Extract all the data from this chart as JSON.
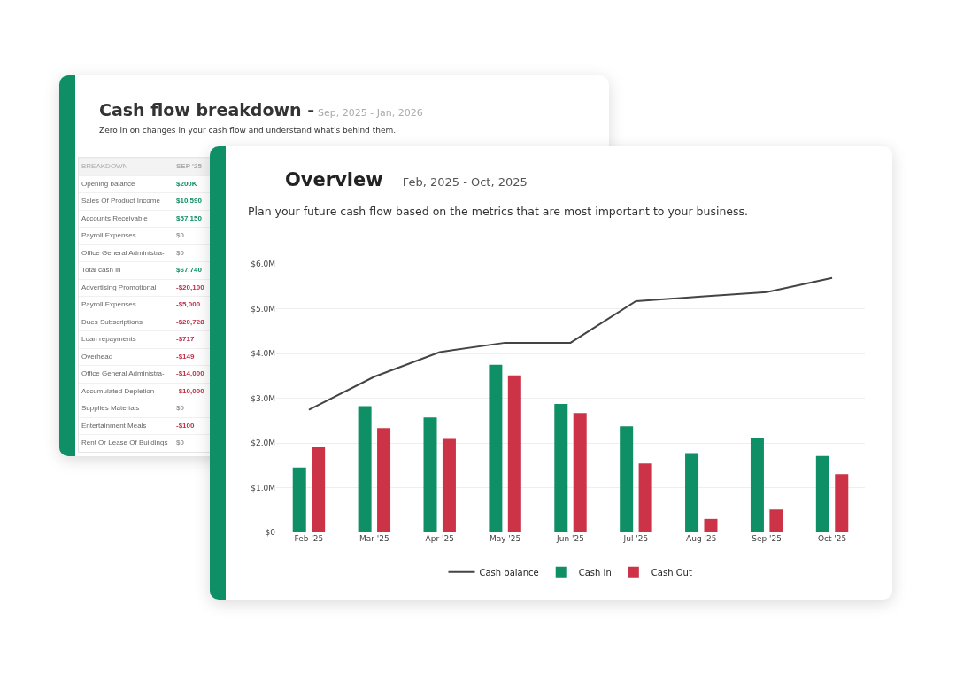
{
  "chart_data": [
    {
      "type": "other",
      "title": "Cash flow breakdown -",
      "subtitle": "Sep, 2025 - Jan, 2026",
      "annotations": [
        "Zero in on changes in your cash flow and understand what's behind them."
      ],
      "xlabel": "BREAKDOWN",
      "ylabel": "SEP '25",
      "categories": [
        "Opening balance",
        "Sales Of Product Income",
        "Accounts Receivable",
        "Payroll Expenses",
        "Office General Administra-",
        "Total cash in",
        "Advertising Promotional",
        "Payroll Expenses",
        "Dues Subscriptions",
        "Loan repayments",
        "Overhead",
        "Office General Administra-",
        "Accumulated Depletion",
        "Supplies Materials",
        "Entertainment Meals",
        "Rent Or Lease Of Buildings"
      ],
      "values": [
        200000,
        10590,
        57150,
        0,
        0,
        67740,
        -20100,
        -5000,
        -20728,
        -717,
        -149,
        -14000,
        -10000,
        0,
        -100,
        0
      ],
      "value_labels": [
        "$200K",
        "$10,590",
        "$57,150",
        "$0",
        "$0",
        "$67,740",
        "-$20,100",
        "-$5,000",
        "-$20,728",
        "-$717",
        "-$149",
        "-$14,000",
        "-$10,000",
        "$0",
        "-$100",
        "$0"
      ]
    },
    {
      "type": "bar",
      "title": "Overview",
      "subtitle": "Feb, 2025 - Oct, 2025",
      "annotations": [
        "Plan your future cash flow based on the metrics that are most important to your business."
      ],
      "categories": [
        "Feb '25",
        "Mar '25",
        "Apr '25",
        "May '25",
        "Jun '25",
        "Jul '25",
        "Aug '25",
        "Sep '25",
        "Oct '25"
      ],
      "series": [
        {
          "name": "Cash balance",
          "type": "line",
          "color": "#444444",
          "values": [
            2.74,
            3.48,
            4.03,
            4.24,
            4.24,
            5.17,
            5.27,
            5.37,
            5.69
          ]
        },
        {
          "name": "Cash In",
          "color": "#0e8f65",
          "values": [
            1.45,
            2.82,
            2.57,
            3.75,
            2.87,
            2.37,
            1.77,
            2.12,
            1.71
          ]
        },
        {
          "name": "Cash Out",
          "color": "#cc3347",
          "values": [
            1.9,
            2.33,
            2.09,
            3.51,
            2.67,
            1.54,
            0.3,
            0.51,
            1.3
          ]
        }
      ],
      "ylim": [
        0,
        6
      ],
      "yticks": [
        {
          "value": 0,
          "label": "$0"
        },
        {
          "value": 1,
          "label": "$1.0M"
        },
        {
          "value": 2,
          "label": "$2.0M"
        },
        {
          "value": 3,
          "label": "$3.0M"
        },
        {
          "value": 4,
          "label": "$4.0M"
        },
        {
          "value": 5,
          "label": "$5.0M"
        },
        {
          "value": 6,
          "label": "$6.0M"
        }
      ],
      "grid": "y",
      "legend": "bottom"
    }
  ]
}
